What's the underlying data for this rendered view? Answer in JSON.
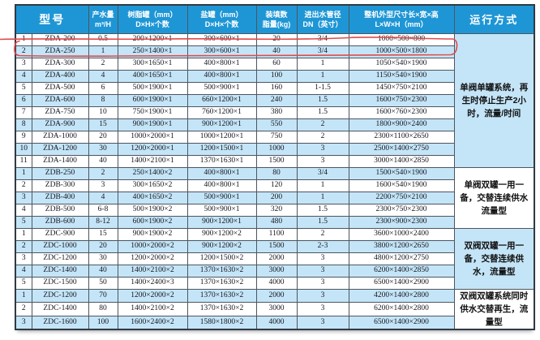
{
  "table": {
    "header": {
      "model": "型号",
      "capacity_l1": "产水量",
      "capacity_l2": "m³/H",
      "resin_l1": "树脂罐（mm）",
      "resin_l2": "D×H×个数",
      "salt_l1": "盐罐（mm）",
      "salt_l2": "D×H×个数",
      "fill_l1": "装填数",
      "fill_l2": "脂量(kg)",
      "dn_l1": "进出水管径",
      "dn_l2": "DN（英寸）",
      "dims_l1": "整机外型尺寸长×宽×高",
      "dims_l2": "L×W×H（mm）",
      "mode": "运行方式"
    },
    "groups": [
      {
        "mode": "单阀单罐系统，再生时停止生产2小时，流量/时间",
        "mode_bg": "blue",
        "rows": [
          [
            "1",
            "ZDA-200",
            "0.5",
            "200×1200×1",
            "300×600×1",
            "20",
            "3/4",
            "1000×500×800"
          ],
          [
            "2",
            "ZDA-250",
            "1",
            "250×1400×1",
            "300×600×1",
            "40",
            "3/4",
            "1000×500×1800"
          ],
          [
            "3",
            "ZDA-300",
            "2",
            "300×1650×1",
            "400×800×1",
            "60",
            "1",
            "1050×540×1900"
          ],
          [
            "4",
            "ZDA-400",
            "4",
            "400×1650×1",
            "400×800×1",
            "100",
            "1",
            "1150×540×1900"
          ],
          [
            "5",
            "ZDA-500",
            "6",
            "500×1900×1",
            "500×900×1",
            "160",
            "1-1.5",
            "1450×750×2100"
          ],
          [
            "6",
            "ZDA-600",
            "8",
            "600×1900×1",
            "660×1200×1",
            "240",
            "1.5",
            "1600×750×2300"
          ],
          [
            "7",
            "ZDA-750",
            "10",
            "750×1900×1",
            "760×1200×1",
            "380",
            "1.5",
            "1600×760×2300"
          ],
          [
            "8",
            "ZDA-900",
            "15",
            "900×1900×1",
            "900×1200×1",
            "550",
            "2",
            "1800×900×2400"
          ],
          [
            "9",
            "ZDA-1000",
            "20",
            "1000×2000×1",
            "1000×1200×1",
            "750",
            "2",
            "2300×1100×2650"
          ],
          [
            "10",
            "ZDA-1200",
            "30",
            "1200×2000×1",
            "1200×1500×1",
            "1000",
            "3",
            "2500×1400×2750"
          ],
          [
            "11",
            "ZDA-1400",
            "40",
            "1400×2100×1",
            "1370×1630×1",
            "1500",
            "3",
            "3000×1400×2850"
          ]
        ]
      },
      {
        "mode": "单阀双罐一用一备，交替连续供水流量型",
        "mode_bg": "white",
        "rows": [
          [
            "1",
            "ZDB-250",
            "2",
            "250×1400×2",
            "400×800×1",
            "80",
            "3/4",
            "1500×540×1900"
          ],
          [
            "2",
            "ZDB-300",
            "3",
            "300×1650×2",
            "400×800×1",
            "120",
            "1",
            "1600×540×1900"
          ],
          [
            "3",
            "ZDB-400",
            "4",
            "400×1650×2",
            "500×900×1",
            "200",
            "1",
            "2200×750×2100"
          ],
          [
            "4",
            "ZDB-500",
            "6-8",
            "500×1900×2",
            "500×900×1",
            "320",
            "1.5",
            "2300×750×2300"
          ],
          [
            "5",
            "ZDB-600",
            "8-12",
            "600×1900×2",
            "900×1200×1",
            "480",
            "1.5",
            "2300×900×2300"
          ]
        ]
      },
      {
        "mode": "双阀双罐一用一备，交替连续供水，流量型",
        "mode_bg": "blue",
        "rows": [
          [
            "1",
            "ZDC-900",
            "15",
            "900×1900×2",
            "900×1200×2",
            "1100",
            "2",
            "3600×1000×2400"
          ],
          [
            "2",
            "ZDC-1000",
            "20",
            "1000×2000×2",
            "900×1200×2",
            "1500",
            "2-3",
            "3800×1200×2650"
          ],
          [
            "3",
            "ZDC-1200",
            "30",
            "1200×2000×2",
            "1200×1500×2",
            "2000",
            "3",
            "4800×1200×2750"
          ],
          [
            "4",
            "ZDC-1400",
            "40",
            "1400×2100×2",
            "1370×1630×2",
            "3000",
            "3",
            "6200×1400×2850"
          ],
          [
            "5",
            "ZDC-1500",
            "50",
            "1400×2400×3",
            "1370×1630×2",
            "4000",
            "3",
            "6500×1400×2900"
          ]
        ]
      },
      {
        "mode": "双阀双罐系统同时供水交替再生，流量型",
        "mode_bg": "white",
        "rows": [
          [
            "1",
            "ZDC-1200",
            "70",
            "1200×2000×2",
            "1370×1630×2",
            "2000",
            "3",
            "4200×1400×2800"
          ],
          [
            "2",
            "ZDC-1400",
            "80",
            "1400×2100×2",
            "1370×1630×2",
            "3000",
            "3",
            "6200×1400×2800"
          ],
          [
            "3",
            "ZDC-1600",
            "100",
            "1600×2400×2",
            "1580×1800×2",
            "4000",
            "3",
            "6500×1400×2900"
          ]
        ]
      }
    ]
  },
  "annotation": {
    "highlighted_model": "ZDA-250",
    "color": "#e04b4b"
  },
  "colors": {
    "header_bg": "#1e96d5",
    "stripe_bg": "#c4e5f7",
    "border": "#4d5560"
  }
}
